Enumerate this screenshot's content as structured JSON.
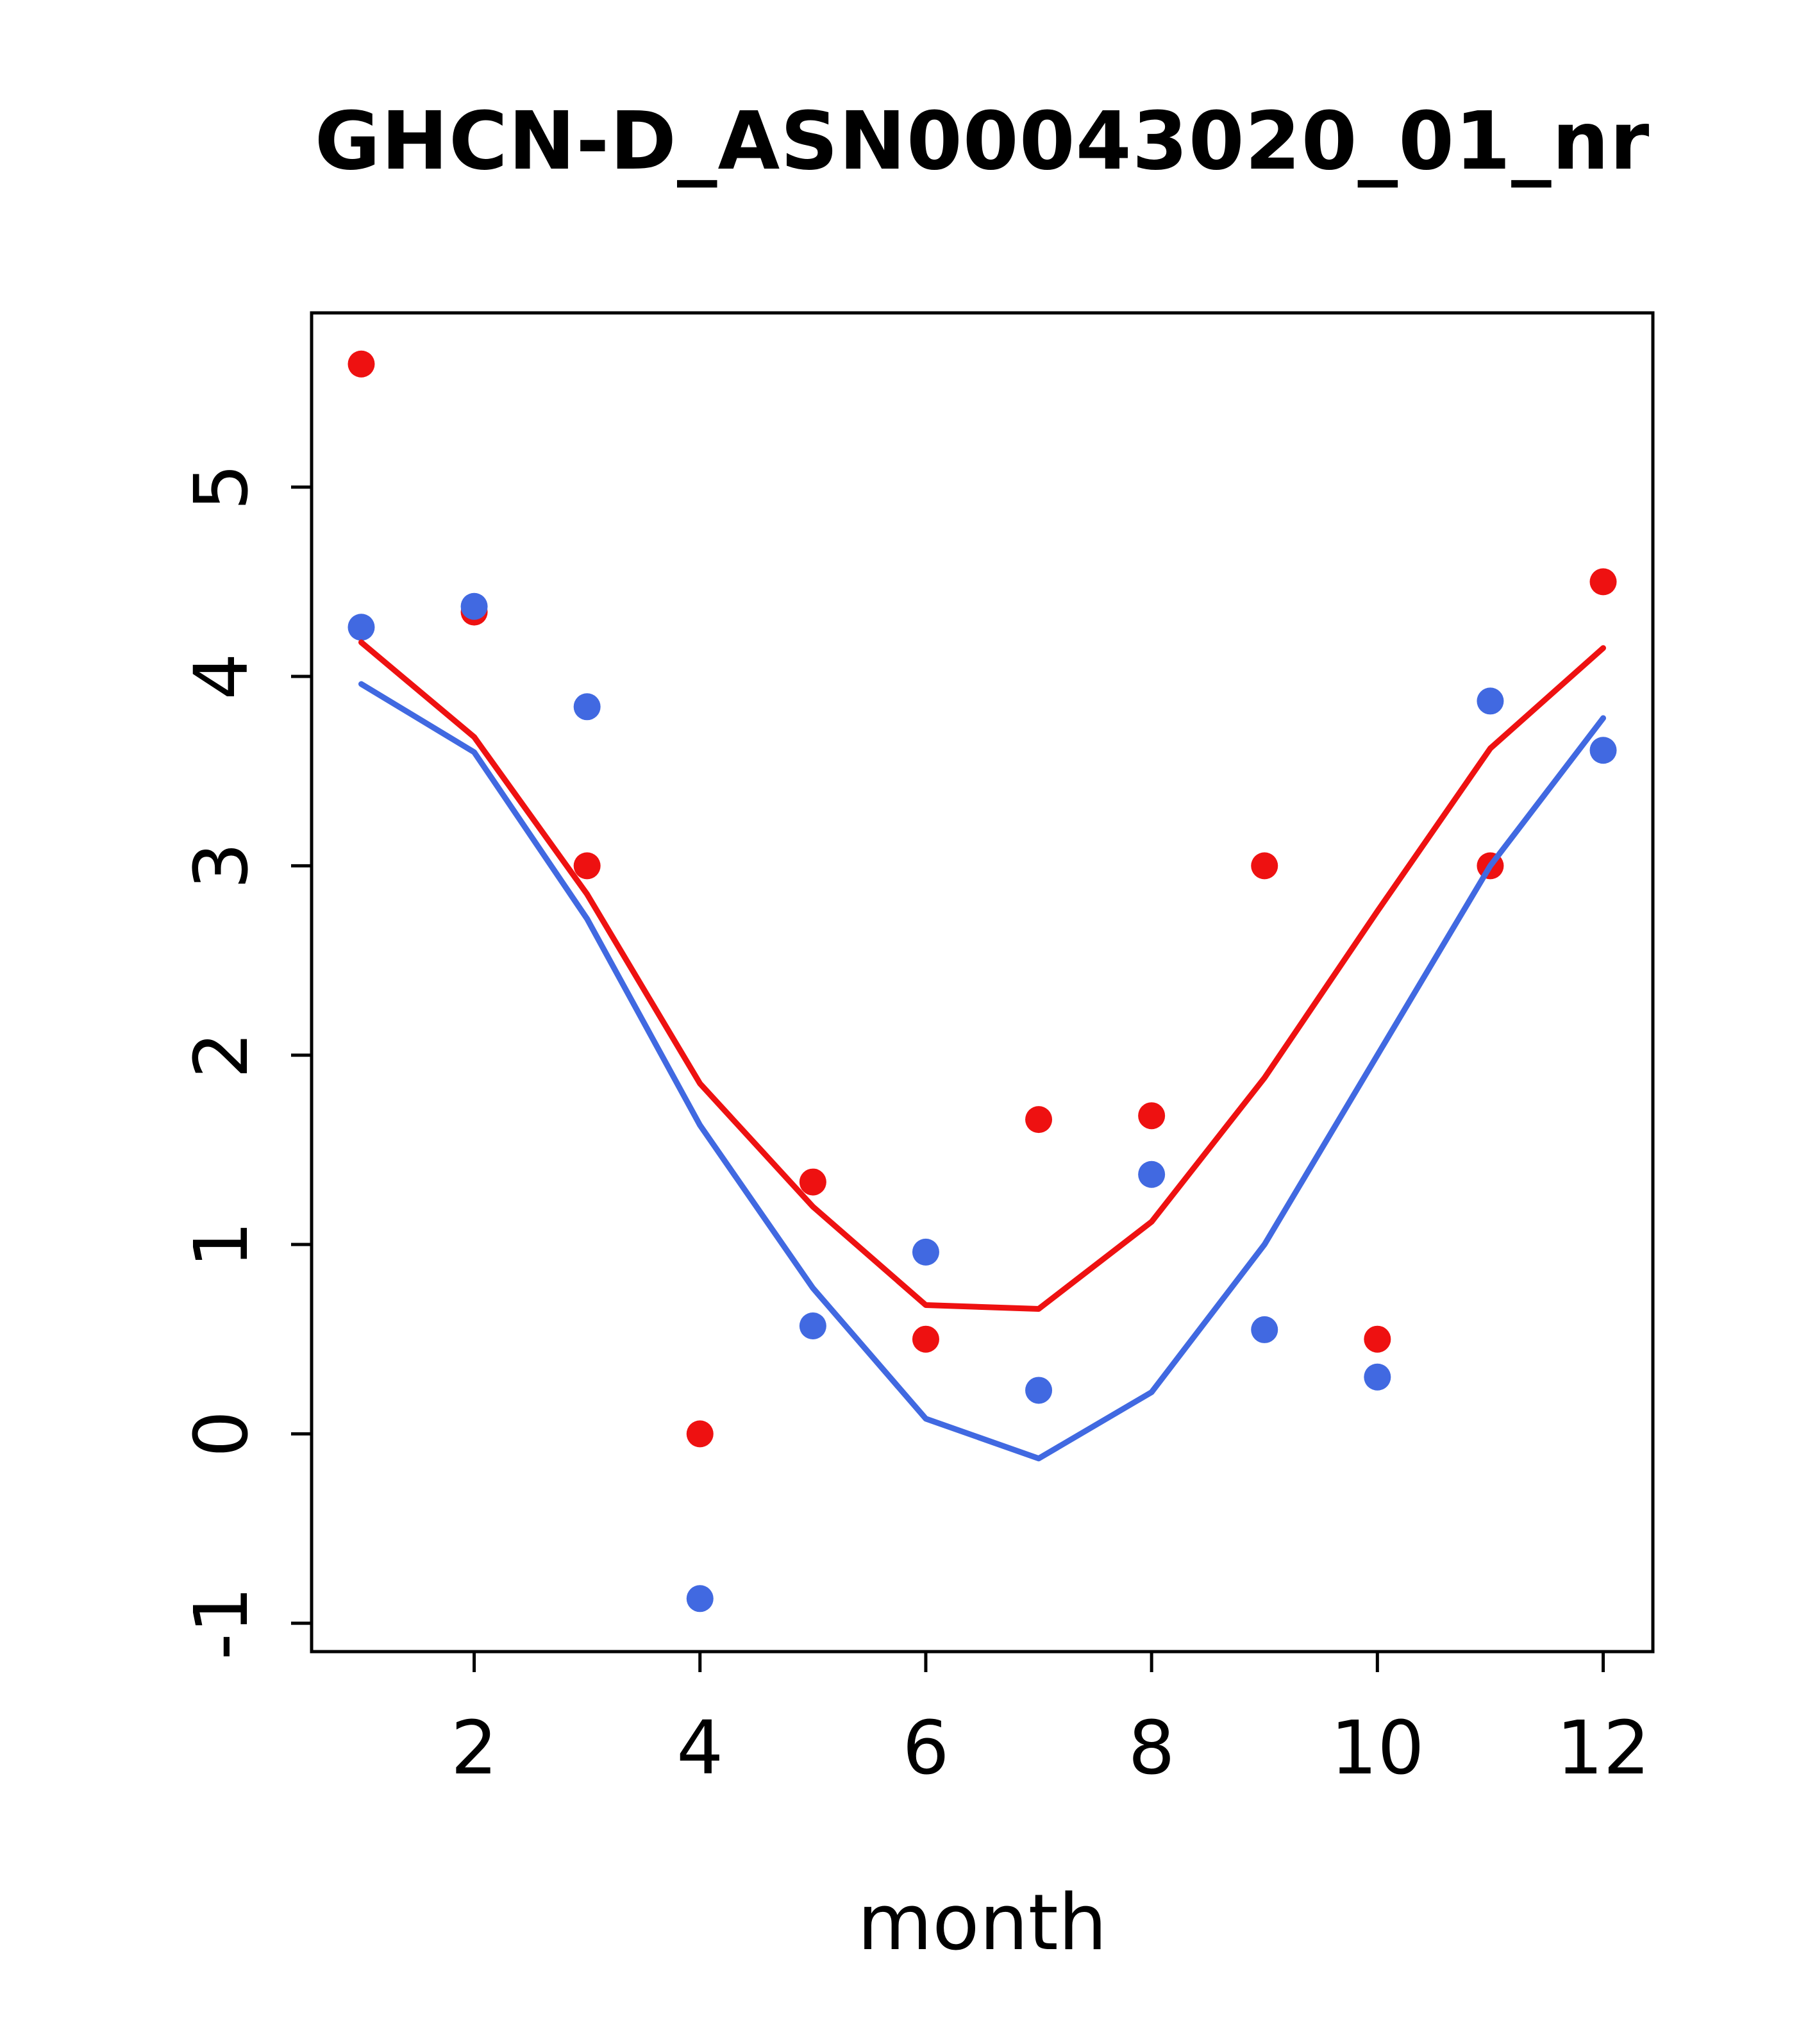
{
  "chart_data": {
    "type": "scatter",
    "title": "GHCN-D_ASN00043020_01_nr",
    "xlabel": "month",
    "ylabel": "",
    "x": [
      1,
      2,
      3,
      4,
      5,
      6,
      7,
      8,
      9,
      10,
      11,
      12
    ],
    "xticks": [
      2,
      4,
      6,
      8,
      10,
      12
    ],
    "yticks": [
      -1,
      0,
      1,
      2,
      3,
      4,
      5
    ],
    "xlim": [
      0.56,
      12.44
    ],
    "ylim": [
      -1.15,
      5.92
    ],
    "grid": false,
    "legend": "none",
    "colors": {
      "red": "#ee1111",
      "blue": "#4169e1",
      "axis": "#000000"
    },
    "series": [
      {
        "name": "red-points",
        "type": "points",
        "color": "#ee1111",
        "values": [
          5.65,
          4.34,
          3.0,
          0.0,
          1.33,
          0.5,
          1.66,
          1.68,
          3.0,
          0.5,
          3.0,
          4.5
        ]
      },
      {
        "name": "blue-points",
        "type": "points",
        "color": "#4169e1",
        "values": [
          4.26,
          4.37,
          3.84,
          -0.87,
          0.57,
          0.96,
          0.23,
          1.37,
          0.55,
          0.3,
          3.87,
          3.61
        ]
      },
      {
        "name": "red-smooth-line",
        "type": "line",
        "color": "#ee1111",
        "values": [
          4.18,
          3.68,
          2.85,
          1.85,
          1.2,
          0.68,
          0.66,
          1.12,
          1.88,
          2.76,
          3.62,
          4.15
        ]
      },
      {
        "name": "blue-smooth-line",
        "type": "line",
        "color": "#4169e1",
        "values": [
          3.96,
          3.6,
          2.72,
          1.63,
          0.77,
          0.08,
          -0.13,
          0.22,
          1.0,
          2.0,
          3.0,
          3.78
        ]
      }
    ]
  }
}
